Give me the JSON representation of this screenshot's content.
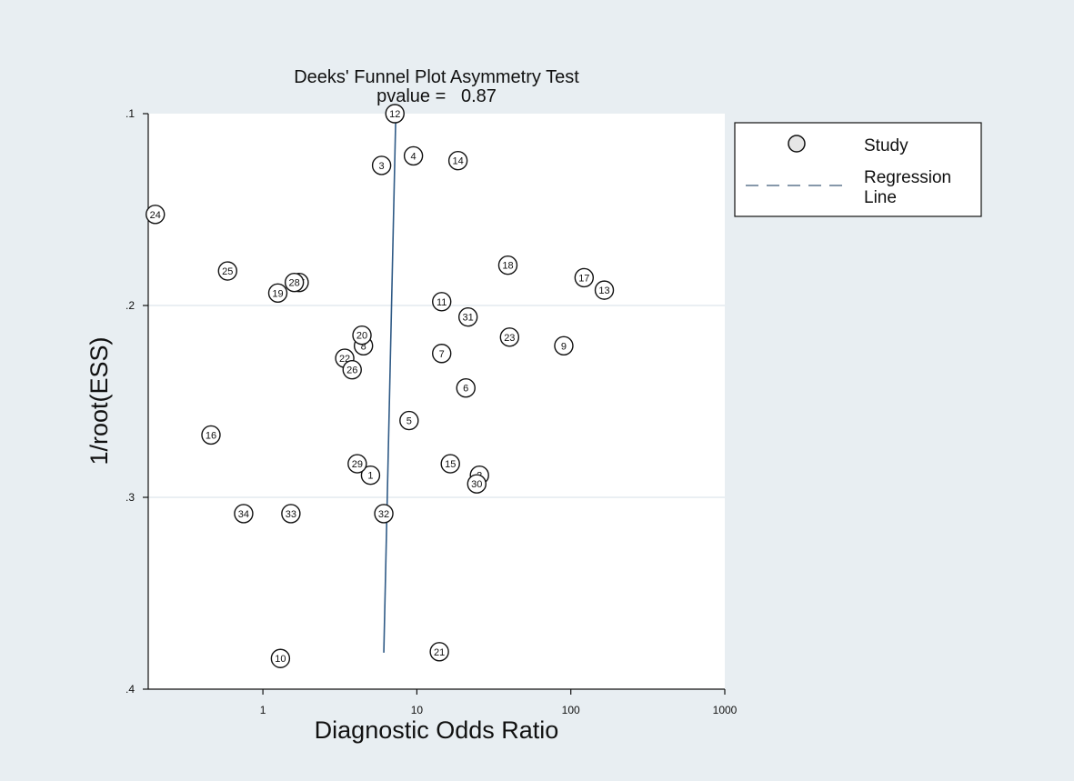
{
  "chart_data": {
    "type": "scatter",
    "title": "Deeks' Funnel Plot Asymmetry Test",
    "subtitle": "pvalue =   0.87",
    "xlabel": "Diagnostic Odds Ratio",
    "ylabel": "1/root(ESS)",
    "x_scale": "log",
    "y_reversed": true,
    "xlim": [
      0.18,
      1000
    ],
    "ylim": [
      0.1,
      0.4
    ],
    "x_ticks": [
      1,
      10,
      100,
      1000
    ],
    "x_tick_labels": [
      "1",
      "10",
      "100",
      "1000"
    ],
    "y_ticks": [
      0.1,
      0.2,
      0.3,
      0.4
    ],
    "y_tick_labels": [
      ".1",
      ".2",
      ".3",
      ".4"
    ],
    "grid": "horizontal",
    "legend_position": "right",
    "legend": {
      "study": "Study",
      "regression_line_1": "Regression",
      "regression_line_2": "Line"
    },
    "regression_line": {
      "x": [
        7.3,
        6.1
      ],
      "y": [
        0.1,
        0.381
      ]
    },
    "points": [
      {
        "label": "1",
        "x": 5.0,
        "y": 0.2885
      },
      {
        "label": "2",
        "x": 25.5,
        "y": 0.2885
      },
      {
        "label": "3",
        "x": 5.9,
        "y": 0.127
      },
      {
        "label": "4",
        "x": 9.5,
        "y": 0.122
      },
      {
        "label": "5",
        "x": 8.9,
        "y": 0.26
      },
      {
        "label": "6",
        "x": 20.8,
        "y": 0.243
      },
      {
        "label": "7",
        "x": 14.5,
        "y": 0.225
      },
      {
        "label": "8",
        "x": 4.5,
        "y": 0.221
      },
      {
        "label": "9",
        "x": 90,
        "y": 0.221
      },
      {
        "label": "10",
        "x": 1.3,
        "y": 0.384
      },
      {
        "label": "11",
        "x": 14.5,
        "y": 0.198
      },
      {
        "label": "12",
        "x": 7.2,
        "y": 0.1
      },
      {
        "label": "13",
        "x": 165,
        "y": 0.192
      },
      {
        "label": "14",
        "x": 18.5,
        "y": 0.1245
      },
      {
        "label": "15",
        "x": 16.5,
        "y": 0.2825
      },
      {
        "label": "16",
        "x": 0.46,
        "y": 0.2675
      },
      {
        "label": "17",
        "x": 122,
        "y": 0.1855
      },
      {
        "label": "18",
        "x": 39,
        "y": 0.179
      },
      {
        "label": "19",
        "x": 1.25,
        "y": 0.1935
      },
      {
        "label": "20",
        "x": 4.4,
        "y": 0.2155
      },
      {
        "label": "21",
        "x": 14.0,
        "y": 0.3805
      },
      {
        "label": "22",
        "x": 3.4,
        "y": 0.2275
      },
      {
        "label": "23",
        "x": 40,
        "y": 0.2165
      },
      {
        "label": "24",
        "x": 0.2,
        "y": 0.1525
      },
      {
        "label": "25",
        "x": 0.59,
        "y": 0.182
      },
      {
        "label": "26",
        "x": 3.8,
        "y": 0.2335
      },
      {
        "label": "27",
        "x": 1.72,
        "y": 0.188
      },
      {
        "label": "28",
        "x": 1.6,
        "y": 0.188
      },
      {
        "label": "29",
        "x": 4.1,
        "y": 0.2825
      },
      {
        "label": "30",
        "x": 24.5,
        "y": 0.293
      },
      {
        "label": "31",
        "x": 21.5,
        "y": 0.206
      },
      {
        "label": "32",
        "x": 6.1,
        "y": 0.3085
      },
      {
        "label": "33",
        "x": 1.52,
        "y": 0.3085
      },
      {
        "label": "34",
        "x": 0.75,
        "y": 0.3085
      }
    ]
  }
}
